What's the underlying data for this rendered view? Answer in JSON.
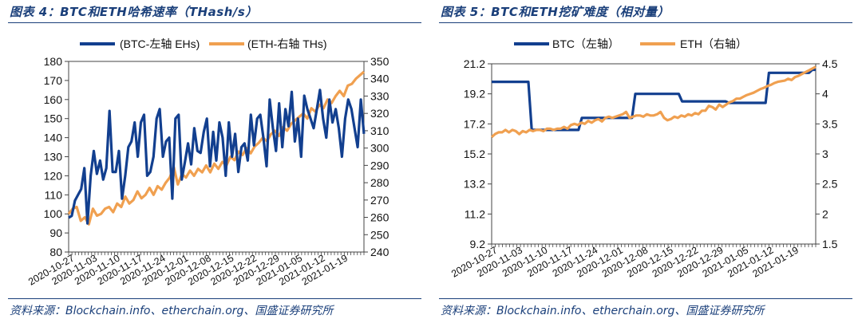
{
  "panels": [
    {
      "title": "图表 4：BTC和ETH哈希速率（THash/s）",
      "source": "资料来源：Blockchain.info、etherchain.org、国盛证券研究所"
    },
    {
      "title": "图表 5：BTC和ETH挖矿难度（相对量）",
      "source": "资料来源：Blockchain.info、etherchain.org、国盛证券研究所"
    }
  ],
  "colors": {
    "btc": "#123f8f",
    "eth": "#f0a050",
    "header": "#1a3f7a"
  },
  "chart_data": [
    {
      "type": "line",
      "title": "图表 4：BTC和ETH哈希速率（THash/s）",
      "x_tick_labels": [
        "2020-10-27",
        "2020-11-03",
        "2020-11-10",
        "2020-11-17",
        "2020-11-24",
        "2020-12-01",
        "2020-12-08",
        "2020-12-15",
        "2020-12-22",
        "2020-12-29",
        "2021-01-05",
        "2021-01-12",
        "2021-01-19"
      ],
      "y_left": {
        "min": 80,
        "max": 180,
        "step": 10,
        "ticks": [
          "80",
          "90",
          "100",
          "110",
          "120",
          "130",
          "140",
          "150",
          "160",
          "170",
          "180"
        ]
      },
      "y_right": {
        "min": 240,
        "max": 350,
        "step": 10,
        "ticks": [
          "240",
          "250",
          "260",
          "270",
          "280",
          "290",
          "300",
          "310",
          "320",
          "330",
          "340",
          "350"
        ]
      },
      "series": [
        {
          "name": "(BTC-左轴 EHs)",
          "axis": "left",
          "values": [
            98,
            99,
            107,
            110,
            113,
            124,
            95,
            120,
            133,
            121,
            128,
            118,
            124,
            154,
            122,
            122,
            133,
            108,
            120,
            135,
            138,
            148,
            130,
            148,
            152,
            120,
            122,
            130,
            150,
            155,
            130,
            138,
            140,
            108,
            150,
            152,
            118,
            127,
            137,
            126,
            145,
            133,
            132,
            143,
            150,
            125,
            143,
            128,
            148,
            140,
            120,
            148,
            130,
            142,
            122,
            135,
            137,
            128,
            152,
            136,
            150,
            152,
            140,
            125,
            160,
            145,
            133,
            158,
            135,
            155,
            146,
            164,
            138,
            150,
            130,
            162,
            155,
            150,
            145,
            155,
            165,
            150,
            140,
            160,
            148,
            155,
            145,
            130,
            150,
            160,
            155,
            145,
            135,
            160,
            142
          ]
        },
        {
          "name": "(ETH-右轴 THs)",
          "axis": "right",
          "values": [
            262,
            265,
            266,
            258,
            260,
            256,
            265,
            261,
            262,
            265,
            266,
            263,
            268,
            266,
            272,
            268,
            270,
            275,
            271,
            273,
            277,
            273,
            278,
            276,
            280,
            283,
            289,
            279,
            285,
            283,
            287,
            284,
            288,
            286,
            290,
            286,
            291,
            288,
            292,
            290,
            295,
            293,
            298,
            296,
            300,
            297,
            301,
            303,
            306,
            304,
            308,
            310,
            307,
            312,
            310,
            314,
            316,
            318,
            320,
            317,
            323,
            321,
            325,
            323,
            328,
            326,
            330,
            333,
            330,
            336,
            337,
            340,
            342,
            344
          ]
        }
      ]
    },
    {
      "type": "line",
      "title": "图表 5：BTC和ETH挖矿难度（相对量）",
      "x_tick_labels": [
        "2020-10-27",
        "2020-11-03",
        "2020-11-10",
        "2020-11-17",
        "2020-11-24",
        "2020-12-01",
        "2020-12-08",
        "2020-12-15",
        "2020-12-22",
        "2020-12-29",
        "2021-01-05",
        "2021-01-12",
        "2021-01-19"
      ],
      "y_left": {
        "min": 9.2,
        "max": 21.2,
        "step": 2,
        "ticks": [
          "9.2",
          "11.2",
          "13.2",
          "15.2",
          "17.2",
          "19.2",
          "21.2"
        ]
      },
      "y_right": {
        "min": 1.5,
        "max": 4.5,
        "step": 0.5,
        "ticks": [
          "1.5",
          "2",
          "2.5",
          "3",
          "3.5",
          "4",
          "4.5"
        ]
      },
      "series": [
        {
          "name": "BTC（左轴）",
          "axis": "left",
          "values": [
            20.0,
            20.0,
            20.0,
            20.0,
            20.0,
            20.0,
            20.0,
            20.0,
            20.0,
            20.0,
            20.0,
            20.0,
            16.8,
            16.8,
            16.8,
            16.8,
            16.8,
            16.8,
            16.8,
            16.8,
            16.8,
            16.8,
            16.8,
            16.8,
            16.8,
            16.8,
            16.8,
            17.6,
            17.6,
            17.6,
            17.6,
            17.6,
            17.6,
            17.6,
            17.6,
            17.6,
            17.6,
            17.6,
            17.6,
            17.6,
            17.6,
            17.6,
            17.6,
            19.2,
            19.2,
            19.2,
            19.2,
            19.2,
            19.2,
            19.2,
            19.2,
            19.2,
            19.2,
            19.2,
            19.2,
            19.2,
            19.2,
            18.7,
            18.7,
            18.7,
            18.7,
            18.7,
            18.7,
            18.7,
            18.7,
            18.7,
            18.7,
            18.7,
            18.7,
            18.7,
            18.7,
            18.6,
            18.6,
            18.6,
            18.6,
            18.6,
            18.6,
            18.6,
            18.6,
            18.6,
            18.6,
            18.6,
            18.6,
            20.6,
            20.6,
            20.6,
            20.6,
            20.6,
            20.6,
            20.6,
            20.6,
            20.6,
            20.6,
            20.6,
            20.6,
            20.6,
            20.8,
            20.8
          ]
        },
        {
          "name": "ETH（右轴）",
          "axis": "right",
          "values": [
            3.28,
            3.33,
            3.36,
            3.36,
            3.4,
            3.36,
            3.4,
            3.38,
            3.33,
            3.38,
            3.36,
            3.4,
            3.38,
            3.4,
            3.4,
            3.38,
            3.42,
            3.42,
            3.4,
            3.42,
            3.42,
            3.45,
            3.42,
            3.48,
            3.5,
            3.48,
            3.52,
            3.5,
            3.55,
            3.52,
            3.56,
            3.58,
            3.54,
            3.6,
            3.62,
            3.6,
            3.62,
            3.64,
            3.66,
            3.7,
            3.6,
            3.62,
            3.64,
            3.64,
            3.62,
            3.66,
            3.64,
            3.64,
            3.66,
            3.7,
            3.6,
            3.56,
            3.58,
            3.62,
            3.6,
            3.64,
            3.62,
            3.66,
            3.64,
            3.68,
            3.66,
            3.72,
            3.72,
            3.8,
            3.78,
            3.74,
            3.82,
            3.78,
            3.82,
            3.86,
            3.88,
            3.92,
            3.92,
            3.95,
            3.98,
            4.0,
            4.02,
            4.05,
            4.08,
            4.1,
            4.13,
            4.15,
            4.18,
            4.2,
            4.21,
            4.22,
            4.25,
            4.23,
            4.28,
            4.3,
            4.33,
            4.36,
            4.39,
            4.42,
            4.45
          ]
        }
      ]
    }
  ]
}
